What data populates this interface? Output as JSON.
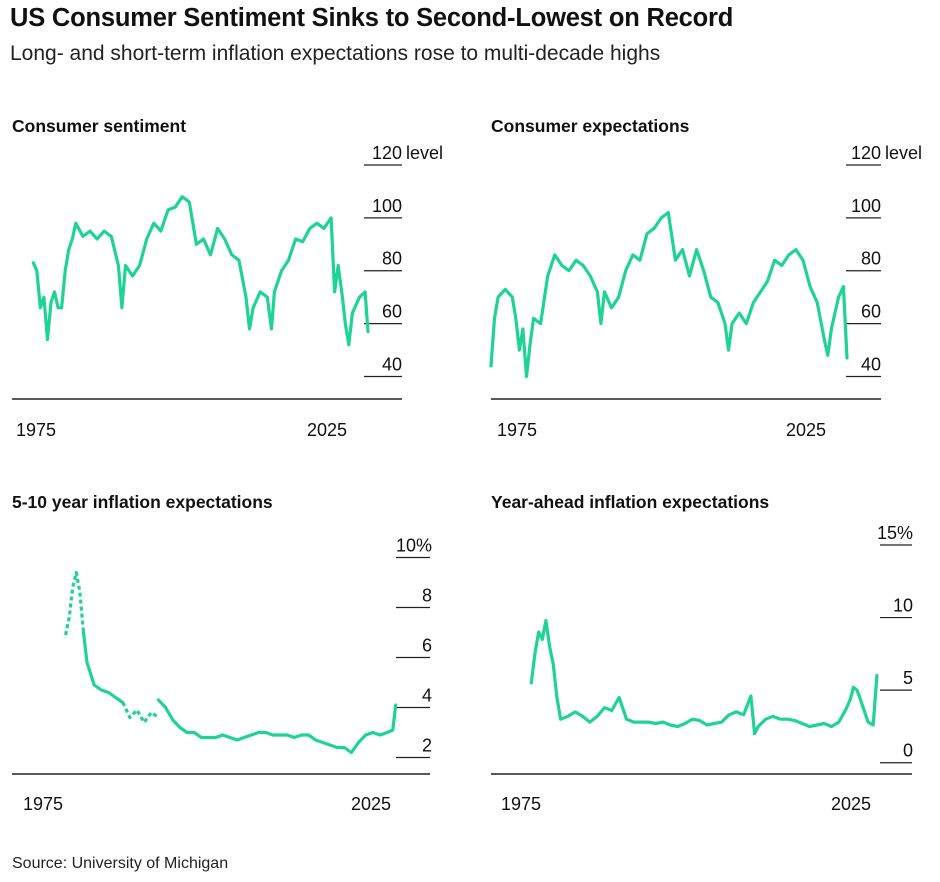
{
  "title": "US Consumer Sentiment Sinks to Second-Lowest on Record",
  "subtitle": "Long- and short-term inflation expectations rose to multi-decade highs",
  "source": "Source: University of Michigan",
  "colors": {
    "series": "#1fd394",
    "axis": "#222222",
    "text": "#111111"
  },
  "chart_data": [
    {
      "type": "line",
      "title": "Consumer sentiment",
      "y_unit": "level",
      "x_ticks": [
        "1975",
        "2025"
      ],
      "y_ticks": [
        {
          "value": 120,
          "label": "120"
        },
        {
          "value": 100,
          "label": "100"
        },
        {
          "value": 80,
          "label": "80"
        },
        {
          "value": 60,
          "label": "60"
        },
        {
          "value": 40,
          "label": "40"
        }
      ],
      "xlim": [
        1975,
        2030
      ],
      "ylim": [
        33,
        120
      ],
      "series": [
        {
          "x": [
            1978,
            1978.5,
            1979,
            1979.5,
            1980,
            1980.5,
            1981,
            1981.5,
            1982,
            1982.5,
            1983,
            1983.5,
            1984,
            1985,
            1986,
            1987,
            1988,
            1989,
            1990,
            1990.5,
            1991,
            1992,
            1993,
            1994,
            1995,
            1996,
            1997,
            1998,
            1999,
            2000,
            2001,
            2002,
            2003,
            2004,
            2005,
            2006,
            2007,
            2008,
            2008.5,
            2009,
            2010,
            2011,
            2011.6,
            2012,
            2013,
            2014,
            2015,
            2016,
            2017,
            2018,
            2019,
            2020,
            2020.5,
            2021,
            2021.6,
            2022,
            2022.5,
            2023,
            2024,
            2024.8,
            2025.2
          ],
          "values": [
            83,
            80,
            66,
            70,
            54,
            68,
            72,
            66,
            66,
            80,
            88,
            92,
            98,
            93,
            95,
            92,
            95,
            93,
            82,
            66,
            82,
            78,
            82,
            92,
            98,
            95,
            103,
            104,
            108,
            106,
            90,
            92,
            86,
            96,
            92,
            86,
            84,
            70,
            58,
            66,
            72,
            70,
            58,
            72,
            80,
            84,
            92,
            91,
            96,
            98,
            96,
            100,
            72,
            82,
            70,
            60,
            52,
            64,
            70,
            72,
            57
          ]
        }
      ]
    },
    {
      "type": "line",
      "title": "Consumer expectations",
      "y_unit": "level",
      "x_ticks": [
        "1975",
        "2025"
      ],
      "y_ticks": [
        {
          "value": 120,
          "label": "120"
        },
        {
          "value": 100,
          "label": "100"
        },
        {
          "value": 80,
          "label": "80"
        },
        {
          "value": 60,
          "label": "60"
        },
        {
          "value": 40,
          "label": "40"
        }
      ],
      "xlim": [
        1975,
        2030
      ],
      "ylim": [
        33,
        120
      ],
      "series": [
        {
          "x": [
            1975,
            1975.5,
            1976,
            1977,
            1978,
            1978.5,
            1979,
            1979.5,
            1980,
            1980.5,
            1981,
            1982,
            1983,
            1984,
            1985,
            1986,
            1987,
            1988,
            1989,
            1990,
            1990.5,
            1991,
            1992,
            1993,
            1994,
            1995,
            1996,
            1997,
            1998,
            1999,
            2000,
            2001,
            2002,
            2003,
            2004,
            2005,
            2006,
            2007,
            2008,
            2008.5,
            2009,
            2010,
            2011,
            2012,
            2013,
            2014,
            2015,
            2016,
            2017,
            2018,
            2019,
            2020,
            2021,
            2022,
            2022.5,
            2023,
            2024,
            2024.7,
            2025.2
          ],
          "values": [
            44,
            62,
            70,
            73,
            70,
            62,
            50,
            58,
            40,
            52,
            62,
            60,
            78,
            86,
            82,
            80,
            84,
            82,
            78,
            72,
            60,
            72,
            66,
            70,
            80,
            86,
            84,
            94,
            96,
            100,
            102,
            84,
            88,
            78,
            88,
            80,
            70,
            68,
            60,
            50,
            60,
            64,
            60,
            68,
            72,
            76,
            84,
            82,
            86,
            88,
            84,
            74,
            68,
            54,
            48,
            58,
            70,
            74,
            47
          ]
        }
      ]
    },
    {
      "type": "line",
      "title": "5-10 year inflation expectations",
      "y_unit": "%",
      "x_ticks": [
        "1975",
        "2025"
      ],
      "y_ticks": [
        {
          "value": 10,
          "label": "10%"
        },
        {
          "value": 8,
          "label": "8"
        },
        {
          "value": 6,
          "label": "6"
        },
        {
          "value": 4,
          "label": "4"
        },
        {
          "value": 2,
          "label": "2"
        }
      ],
      "xlim": [
        1971.5,
        2030
      ],
      "ylim": [
        1.5,
        10.5
      ],
      "series": [
        {
          "style": "dotted",
          "x": [
            1979,
            1979.5,
            1980,
            1980.5,
            1981,
            1981.5
          ],
          "values": [
            6.9,
            7.6,
            8.8,
            9.4,
            8.6,
            7.0
          ]
        },
        {
          "style": "solid",
          "x": [
            1981.5,
            1982,
            1983,
            1984,
            1985,
            1986,
            1987
          ],
          "values": [
            7.0,
            5.8,
            4.9,
            4.7,
            4.6,
            4.4,
            4.2
          ]
        },
        {
          "style": "dotted",
          "x": [
            1987,
            1988,
            1989,
            1990,
            1991,
            1992
          ],
          "values": [
            4.2,
            3.6,
            3.9,
            3.4,
            3.8,
            3.6
          ]
        },
        {
          "style": "solid",
          "x": [
            1992,
            1993,
            1994,
            1995,
            1996,
            1997,
            1998,
            1999,
            2000,
            2001,
            2002,
            2003,
            2004,
            2005,
            2006,
            2007,
            2008,
            2009,
            2010,
            2011,
            2012,
            2013,
            2014,
            2015,
            2016,
            2017,
            2018,
            2019,
            2020,
            2021,
            2022,
            2023,
            2024,
            2024.8,
            2025.2
          ],
          "values": [
            4.3,
            4.0,
            3.5,
            3.2,
            3.0,
            3.0,
            2.8,
            2.8,
            2.8,
            2.9,
            2.8,
            2.7,
            2.8,
            2.9,
            3.0,
            3.0,
            2.9,
            2.9,
            2.9,
            2.8,
            2.9,
            2.9,
            2.7,
            2.6,
            2.5,
            2.4,
            2.4,
            2.2,
            2.6,
            2.9,
            3.0,
            2.9,
            3.0,
            3.1,
            4.1
          ]
        }
      ]
    },
    {
      "type": "line",
      "title": "Year-ahead inflation expectations",
      "y_unit": "%",
      "x_ticks": [
        "1975",
        "2025"
      ],
      "y_ticks": [
        {
          "value": 15,
          "label": "15%"
        },
        {
          "value": 10,
          "label": "10"
        },
        {
          "value": 5,
          "label": "5"
        },
        {
          "value": 0,
          "label": "0"
        }
      ],
      "xlim": [
        1972.5,
        2030
      ],
      "ylim": [
        -0.5,
        15
      ],
      "series": [
        {
          "x": [
            1978,
            1978.5,
            1979,
            1979.5,
            1980,
            1980.5,
            1981,
            1981.5,
            1982,
            1983,
            1984,
            1985,
            1986,
            1987,
            1988,
            1989,
            1990,
            1991,
            1992,
            1993,
            1994,
            1995,
            1996,
            1997,
            1998,
            1999,
            2000,
            2001,
            2002,
            2003,
            2004,
            2005,
            2006,
            2007,
            2008,
            2008.5,
            2009,
            2010,
            2011,
            2012,
            2013,
            2014,
            2015,
            2016,
            2017,
            2018,
            2019,
            2020,
            2021,
            2021.6,
            2022,
            2022.5,
            2023,
            2024,
            2024.7,
            2025.2
          ],
          "values": [
            5.5,
            7.5,
            9.0,
            8.5,
            9.8,
            8.0,
            6.8,
            4.5,
            3.0,
            3.2,
            3.5,
            3.2,
            2.8,
            3.2,
            3.8,
            3.6,
            4.5,
            3.0,
            2.8,
            2.8,
            2.8,
            2.7,
            2.8,
            2.6,
            2.5,
            2.7,
            3.0,
            2.9,
            2.6,
            2.7,
            2.8,
            3.3,
            3.5,
            3.3,
            4.6,
            2.0,
            2.5,
            3.0,
            3.2,
            3.0,
            3.0,
            2.9,
            2.7,
            2.5,
            2.6,
            2.7,
            2.5,
            2.8,
            3.7,
            4.4,
            5.2,
            5.0,
            4.3,
            2.8,
            2.6,
            6.0
          ]
        }
      ]
    }
  ]
}
